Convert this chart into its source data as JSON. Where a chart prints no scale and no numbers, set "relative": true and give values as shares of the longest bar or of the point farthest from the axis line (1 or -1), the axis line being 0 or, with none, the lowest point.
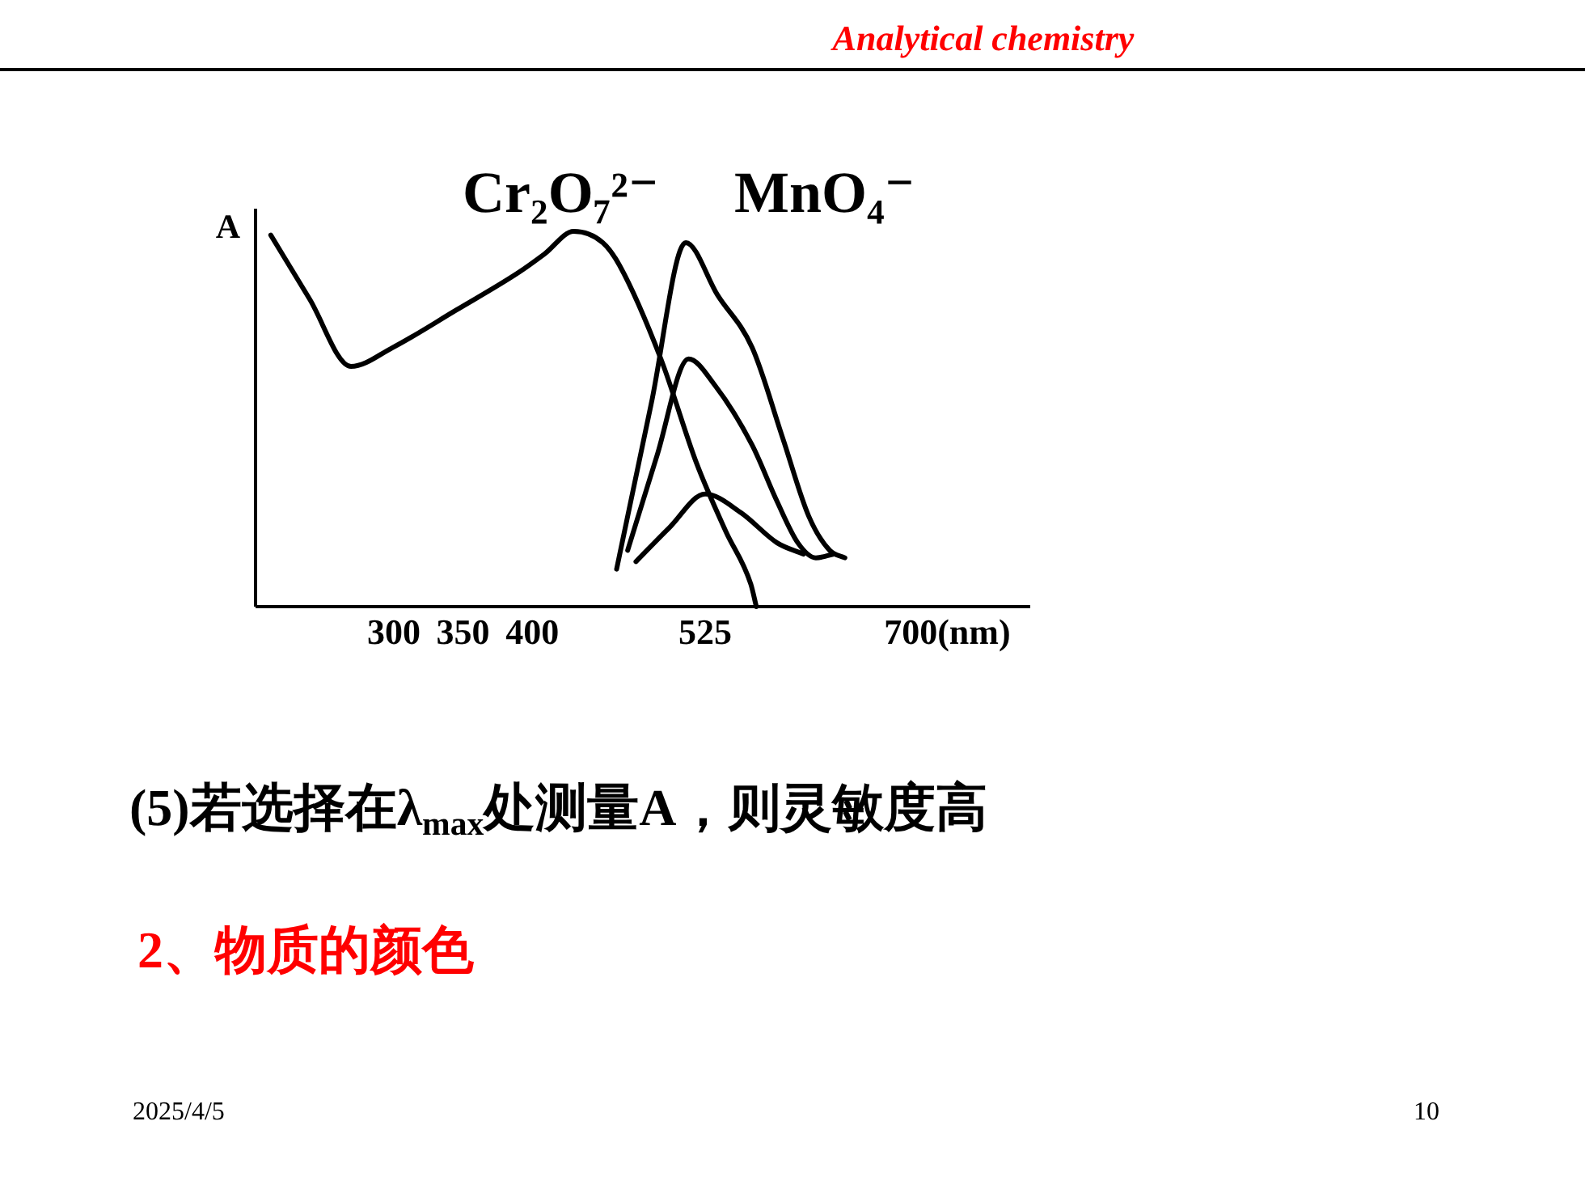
{
  "chart_data": {
    "type": "line",
    "ylabel": "A",
    "relative": true,
    "tick_labels": "x",
    "xlim": [
      200,
      760
    ],
    "xticks": [
      300,
      350,
      400,
      525,
      {
        "value": 700,
        "label": "700(nm)"
      }
    ],
    "series": [
      {
        "name": "Cr₂O₇²⁻",
        "color": "#000000",
        "x": [
          211,
          239,
          269,
          299,
          345,
          390,
          409,
          430,
          451,
          463,
          493,
          519,
          540,
          558,
          562
        ],
        "values": [
          0.99,
          0.82,
          0.64,
          0.69,
          0.79,
          0.89,
          0.94,
          1.0,
          0.97,
          0.91,
          0.66,
          0.38,
          0.2,
          0.06,
          0
        ]
      },
      {
        "name": "MnO₄⁻",
        "color": "#000000",
        "x": [
          461,
          486,
          511,
          534,
          559,
          581,
          600,
          615,
          626
        ],
        "values": [
          0.1,
          0.54,
          0.97,
          0.83,
          0.69,
          0.45,
          0.24,
          0.15,
          0.13
        ]
      },
      {
        "color": "#000000",
        "x": [
          469,
          490,
          513,
          532,
          559,
          577,
          592,
          605,
          618
        ],
        "values": [
          0.15,
          0.4,
          0.66,
          0.59,
          0.43,
          0.28,
          0.17,
          0.13,
          0.14
        ]
      },
      {
        "color": "#000000",
        "x": [
          475,
          499,
          525,
          551,
          577,
          596
        ],
        "values": [
          0.12,
          0.21,
          0.3,
          0.25,
          0.17,
          0.14
        ]
      }
    ],
    "annotations": [
      "Analytical chemistry",
      "(5)若选择在λ$_{max}$处测量A，则灵敏度高",
      "2、物质的颜色",
      "2025/4/5",
      "10"
    ]
  }
}
